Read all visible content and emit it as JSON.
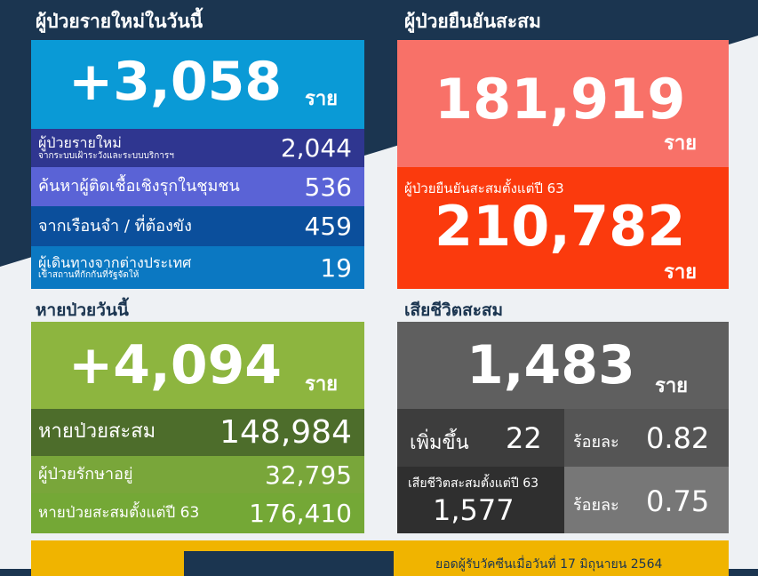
{
  "new_cases": {
    "title": "ผู้ป่วยรายใหม่ในวันนี้",
    "total": "+3,058",
    "unit": "ราย",
    "rows": [
      {
        "label": "ผู้ป่วยรายใหม่",
        "sub": "จากระบบเฝ้าระวังและระบบบริการฯ",
        "value": "2,044"
      },
      {
        "label": "ค้นหาผู้ติดเชื้อเชิงรุกในชุมชน",
        "sub": "",
        "value": "536"
      },
      {
        "label": "จากเรือนจำ / ที่ต้องขัง",
        "sub": "",
        "value": "459"
      },
      {
        "label": "ผู้เดินทางจากต่างประเทศ",
        "sub": "เข้าสถานที่กักกันที่รัฐจัดให้",
        "value": "19"
      }
    ]
  },
  "confirmed": {
    "title": "ผู้ป่วยยืนยันสะสม",
    "total": "181,919",
    "unit": "ราย",
    "since_label": "ผู้ป่วยยืนยันสะสมตั้งแต่ปี 63",
    "since_total": "210,782",
    "since_unit": "ราย"
  },
  "recovered": {
    "title": "หายป่วยวันนี้",
    "total": "+4,094",
    "unit": "ราย",
    "rows": [
      {
        "label": "หายป่วยสะสม",
        "value": "148,984"
      },
      {
        "label": "ผู้ป่วยรักษาอยู่",
        "value": "32,795"
      },
      {
        "label": "หายป่วยสะสมตั้งแต่ปี 63",
        "value": "176,410"
      }
    ]
  },
  "deaths": {
    "title": "เสียชีวิตสะสม",
    "total": "1,483",
    "unit": "ราย",
    "increase_label": "เพิ่มขึ้น",
    "increase_value": "22",
    "pct_label": "ร้อยละ",
    "pct_value": "0.82",
    "since_label": "เสียชีวิตสะสมตั้งแต่ปี 63",
    "since_value": "1,577",
    "since_pct_label": "ร้อยละ",
    "since_pct_value": "0.75"
  },
  "vaccine": {
    "date_text": "ยอดผู้รับวัคซีนเมื่อวันที่ 17 มิถุนายน 2564"
  },
  "colors": {
    "navy": "#1b3550",
    "blue": "#0a9ad6",
    "salmon": "#f87168",
    "red": "#fb3a0d",
    "green": "#8db53f",
    "gray": "#5f5f5f",
    "yellow": "#f0b400"
  }
}
